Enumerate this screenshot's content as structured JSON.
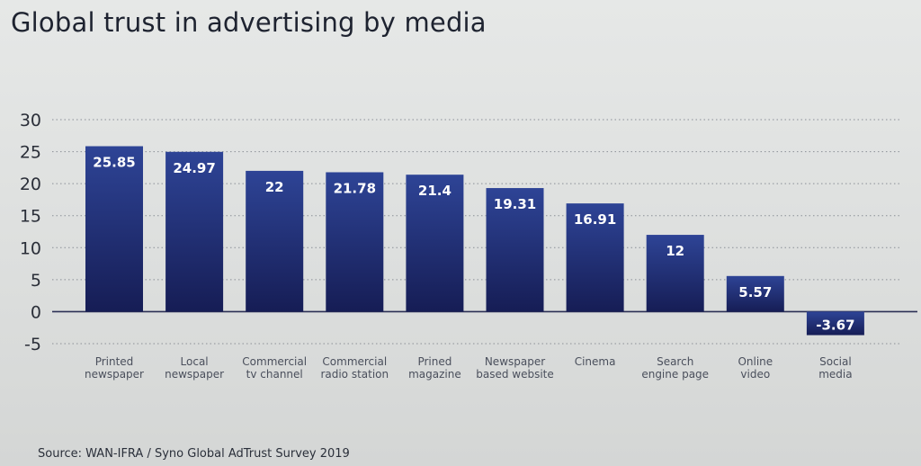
{
  "chart_data": {
    "type": "bar",
    "title": "Global trust in advertising by media",
    "xlabel": "",
    "ylabel": "",
    "ylim": [
      -5,
      30
    ],
    "yticks": [
      30,
      25,
      20,
      15,
      10,
      5,
      0,
      -5
    ],
    "grid": true,
    "categories": [
      [
        "Printed",
        "newspaper"
      ],
      [
        "Local",
        "newspaper"
      ],
      [
        "Commercial",
        "tv channel"
      ],
      [
        "Commercial",
        "radio station"
      ],
      [
        "Prined",
        "magazine"
      ],
      [
        "Newspaper",
        "based website"
      ],
      [
        "Cinema"
      ],
      [
        "Search",
        "engine page"
      ],
      [
        "Online",
        "video"
      ],
      [
        "Social",
        "media"
      ]
    ],
    "values": [
      25.85,
      24.97,
      22,
      21.78,
      21.4,
      19.31,
      16.91,
      12,
      5.57,
      -3.67
    ],
    "value_labels": [
      "25.85",
      "24.97",
      "22",
      "21.78",
      "21.4",
      "19.31",
      "16.91",
      "12",
      "5.57",
      "-3.67"
    ],
    "colors": {
      "bar_top": "#2b3f8f",
      "bar_bottom": "#17205a",
      "baseline": "#2b2f55",
      "grid": "#8a8f96"
    }
  },
  "source": "Source: WAN-IFRA / Syno Global AdTrust Survey 2019"
}
